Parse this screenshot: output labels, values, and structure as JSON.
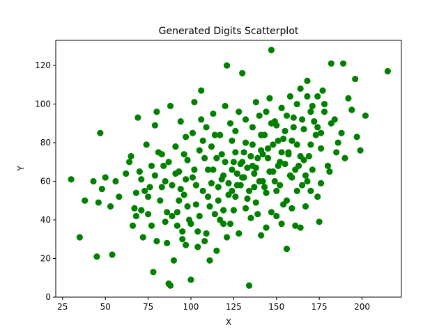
{
  "chart_data": {
    "type": "scatter",
    "title": "Generated Digits Scatterplot",
    "xlabel": "X",
    "ylabel": "Y",
    "xlim": [
      21,
      223
    ],
    "ylim": [
      0,
      133
    ],
    "xticks": [
      25,
      50,
      75,
      100,
      125,
      150,
      175,
      200
    ],
    "yticks": [
      0,
      20,
      40,
      60,
      80,
      100,
      120
    ],
    "grid": false,
    "legend": "none",
    "point_color": "#008000",
    "points": [
      [
        30,
        61
      ],
      [
        35,
        31
      ],
      [
        38,
        50
      ],
      [
        43,
        60
      ],
      [
        45,
        21
      ],
      [
        46,
        49
      ],
      [
        47,
        85
      ],
      [
        48,
        56
      ],
      [
        50,
        62
      ],
      [
        53,
        47
      ],
      [
        54,
        22
      ],
      [
        56,
        60
      ],
      [
        58,
        52
      ],
      [
        62,
        64
      ],
      [
        64,
        70
      ],
      [
        65,
        73
      ],
      [
        66,
        37
      ],
      [
        67,
        46
      ],
      [
        68,
        54
      ],
      [
        69,
        93
      ],
      [
        70,
        65
      ],
      [
        71,
        45
      ],
      [
        72,
        31
      ],
      [
        74,
        79
      ],
      [
        75,
        43
      ],
      [
        76,
        57
      ],
      [
        77,
        37
      ],
      [
        78,
        13
      ],
      [
        79,
        89
      ],
      [
        80,
        96
      ],
      [
        82,
        50
      ],
      [
        83,
        74
      ],
      [
        84,
        68
      ],
      [
        85,
        39
      ],
      [
        86,
        28
      ],
      [
        87,
        7
      ],
      [
        88,
        99
      ],
      [
        89,
        58
      ],
      [
        90,
        19
      ],
      [
        91,
        78
      ],
      [
        92,
        44
      ],
      [
        93,
        65
      ],
      [
        94,
        91
      ],
      [
        95,
        30
      ],
      [
        96,
        53
      ],
      [
        97,
        83
      ],
      [
        98,
        71
      ],
      [
        99,
        40
      ],
      [
        100,
        9
      ],
      [
        101,
        62
      ],
      [
        102,
        101
      ],
      [
        103,
        48
      ],
      [
        104,
        34
      ],
      [
        105,
        76
      ],
      [
        106,
        107
      ],
      [
        107,
        55
      ],
      [
        108,
        29
      ],
      [
        109,
        88
      ],
      [
        110,
        66
      ],
      [
        111,
        19
      ],
      [
        112,
        59
      ],
      [
        113,
        95
      ],
      [
        114,
        43
      ],
      [
        115,
        72
      ],
      [
        116,
        50
      ],
      [
        117,
        84
      ],
      [
        118,
        61
      ],
      [
        119,
        38
      ],
      [
        120,
        70
      ],
      [
        121,
        120
      ],
      [
        122,
        53
      ],
      [
        123,
        90
      ],
      [
        124,
        66
      ],
      [
        125,
        45
      ],
      [
        126,
        75
      ],
      [
        127,
        58
      ],
      [
        128,
        96
      ],
      [
        129,
        69
      ],
      [
        130,
        116
      ],
      [
        131,
        62
      ],
      [
        132,
        80
      ],
      [
        133,
        51
      ],
      [
        134,
        6
      ],
      [
        135,
        73
      ],
      [
        136,
        88
      ],
      [
        137,
        57
      ],
      [
        138,
        67
      ],
      [
        139,
        43
      ],
      [
        140,
        94
      ],
      [
        141,
        76
      ],
      [
        142,
        60
      ],
      [
        143,
        84
      ],
      [
        144,
        36
      ],
      [
        145,
        72
      ],
      [
        146,
        103
      ],
      [
        147,
        128
      ],
      [
        148,
        65
      ],
      [
        149,
        91
      ],
      [
        150,
        55
      ],
      [
        151,
        81
      ],
      [
        152,
        70
      ],
      [
        153,
        98
      ],
      [
        154,
        48
      ],
      [
        155,
        86
      ],
      [
        156,
        25
      ],
      [
        157,
        75
      ],
      [
        158,
        104
      ],
      [
        159,
        62
      ],
      [
        160,
        93
      ],
      [
        161,
        37
      ],
      [
        162,
        79
      ],
      [
        163,
        68
      ],
      [
        164,
        108
      ],
      [
        165,
        58
      ],
      [
        166,
        87
      ],
      [
        167,
        47
      ],
      [
        168,
        112
      ],
      [
        169,
        73
      ],
      [
        170,
        96
      ],
      [
        171,
        66
      ],
      [
        173,
        84
      ],
      [
        174,
        104
      ],
      [
        175,
        39
      ],
      [
        176,
        77
      ],
      [
        178,
        100
      ],
      [
        180,
        68
      ],
      [
        182,
        121
      ],
      [
        184,
        92
      ],
      [
        186,
        80
      ],
      [
        188,
        85
      ],
      [
        189,
        121
      ],
      [
        190,
        72
      ],
      [
        192,
        103
      ],
      [
        194,
        97
      ],
      [
        196,
        113
      ],
      [
        197,
        83
      ],
      [
        199,
        76
      ],
      [
        202,
        94
      ],
      [
        215,
        117
      ],
      [
        88,
        6
      ],
      [
        92,
        37
      ],
      [
        97,
        27
      ],
      [
        104,
        26
      ],
      [
        109,
        33
      ],
      [
        115,
        24
      ],
      [
        121,
        31
      ],
      [
        128,
        33
      ],
      [
        135,
        41
      ],
      [
        141,
        32
      ],
      [
        147,
        44
      ],
      [
        153,
        38
      ],
      [
        159,
        46
      ],
      [
        164,
        36
      ],
      [
        170,
        55
      ],
      [
        176,
        59
      ],
      [
        181,
        65
      ],
      [
        112,
        78
      ],
      [
        118,
        74
      ],
      [
        124,
        81
      ],
      [
        130,
        70
      ],
      [
        136,
        68
      ],
      [
        142,
        74
      ],
      [
        148,
        79
      ],
      [
        154,
        82
      ],
      [
        160,
        88
      ],
      [
        166,
        71
      ],
      [
        172,
        91
      ],
      [
        178,
        96
      ],
      [
        107,
        81
      ],
      [
        113,
        66
      ],
      [
        119,
        63
      ],
      [
        125,
        70
      ],
      [
        131,
        75
      ],
      [
        137,
        64
      ],
      [
        143,
        57
      ],
      [
        149,
        60
      ],
      [
        155,
        69
      ],
      [
        161,
        66
      ],
      [
        167,
        63
      ],
      [
        122,
        59
      ],
      [
        127,
        64
      ],
      [
        133,
        67
      ],
      [
        139,
        72
      ],
      [
        145,
        77
      ],
      [
        151,
        68
      ],
      [
        157,
        74
      ],
      [
        103,
        58
      ],
      [
        110,
        52
      ],
      [
        116,
        57
      ],
      [
        126,
        52
      ],
      [
        132,
        46
      ],
      [
        138,
        49
      ],
      [
        144,
        54
      ],
      [
        150,
        42
      ],
      [
        156,
        50
      ],
      [
        162,
        55
      ],
      [
        168,
        60
      ],
      [
        174,
        52
      ],
      [
        101,
        85
      ],
      [
        106,
        92
      ],
      [
        120,
        99
      ],
      [
        126,
        86
      ],
      [
        132,
        92
      ],
      [
        138,
        101
      ],
      [
        144,
        96
      ],
      [
        150,
        89
      ],
      [
        156,
        94
      ],
      [
        162,
        100
      ],
      [
        168,
        104
      ],
      [
        174,
        88
      ],
      [
        98,
        47
      ],
      [
        94,
        56
      ],
      [
        91,
        64
      ],
      [
        87,
        70
      ],
      [
        83,
        57
      ],
      [
        79,
        63
      ],
      [
        75,
        52
      ],
      [
        71,
        61
      ],
      [
        68,
        42
      ],
      [
        86,
        44
      ],
      [
        96,
        74
      ],
      [
        100,
        38
      ],
      [
        105,
        42
      ],
      [
        111,
        47
      ],
      [
        117,
        40
      ],
      [
        123,
        38
      ],
      [
        129,
        58
      ],
      [
        134,
        55
      ],
      [
        140,
        60
      ],
      [
        146,
        65
      ],
      [
        152,
        58
      ],
      [
        158,
        63
      ],
      [
        164,
        73
      ],
      [
        170,
        79
      ],
      [
        176,
        85
      ],
      [
        182,
        90
      ],
      [
        185,
        75
      ],
      [
        119,
        45
      ],
      [
        124,
        55
      ],
      [
        130,
        62
      ],
      [
        136,
        79
      ],
      [
        141,
        84
      ],
      [
        147,
        90
      ],
      [
        153,
        75
      ],
      [
        159,
        81
      ],
      [
        165,
        92
      ],
      [
        171,
        99
      ],
      [
        177,
        107
      ],
      [
        114,
        84
      ],
      [
        108,
        72
      ],
      [
        102,
        66
      ],
      [
        97,
        61
      ],
      [
        93,
        50
      ],
      [
        89,
        42
      ],
      [
        85,
        60
      ],
      [
        81,
        75
      ],
      [
        77,
        68
      ],
      [
        73,
        55
      ],
      [
        80,
        29
      ],
      [
        95,
        34
      ]
    ]
  }
}
